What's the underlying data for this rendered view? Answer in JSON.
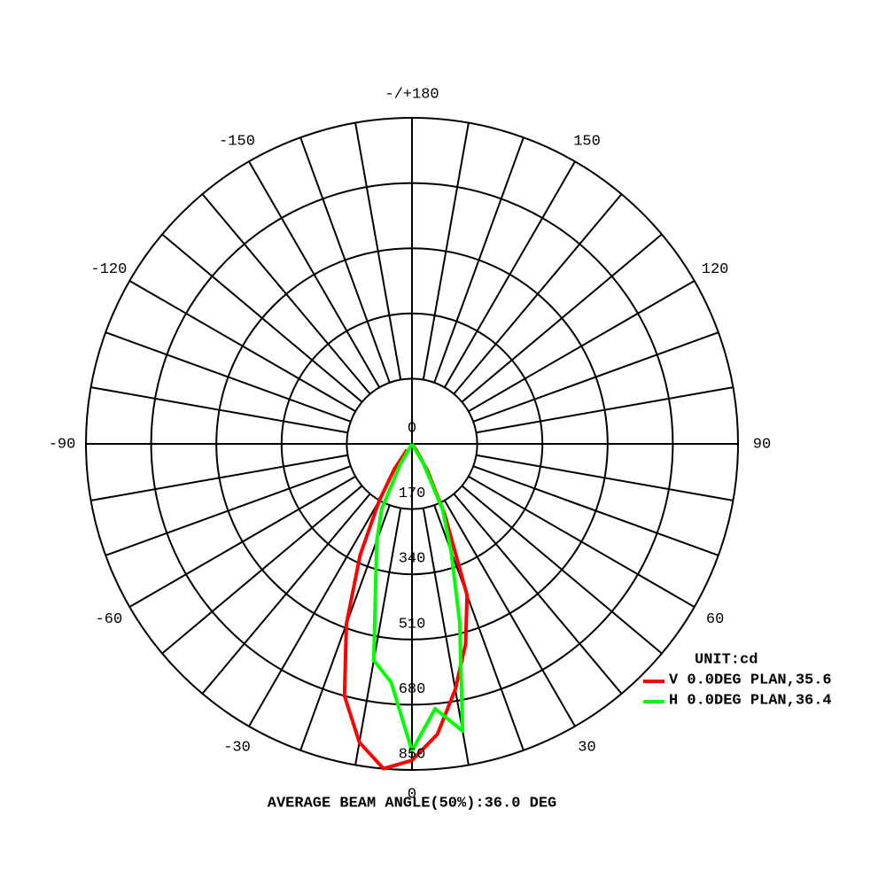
{
  "chart_data": {
    "type": "polar",
    "title": "AVERAGE BEAM ANGLE(50%):36.0 DEG",
    "legend_title": "UNIT:cd",
    "x": [
      -40,
      -35,
      -30,
      -25,
      -20,
      -15,
      -10,
      -5,
      0,
      5,
      10,
      15,
      20,
      25,
      30,
      35,
      40
    ],
    "series": [
      {
        "name": "V 0.0DEG PLAN,35.6",
        "color": "#ff0000",
        "values": [
          20,
          80,
          170,
          320,
          500,
          680,
          790,
          850,
          825,
          760,
          650,
          540,
          420,
          200,
          80,
          20,
          0
        ]
      },
      {
        "name": "H 0.0DEG PLAN,36.4",
        "color": "#00ff00",
        "values": [
          0,
          0,
          60,
          187,
          268,
          365,
          573,
          624,
          800,
          693,
          760,
          480,
          298,
          189,
          60,
          0,
          0
        ]
      }
    ],
    "rlim": [
      0,
      850
    ],
    "rticks": [
      0,
      170,
      340,
      510,
      680,
      850
    ],
    "xticks": [
      0,
      30,
      60,
      90,
      120,
      150,
      {
        "value": 180,
        "label": "-/+180"
      },
      -150,
      -120,
      -90,
      -60,
      -30
    ],
    "grid": true,
    "legend": "lower right"
  }
}
